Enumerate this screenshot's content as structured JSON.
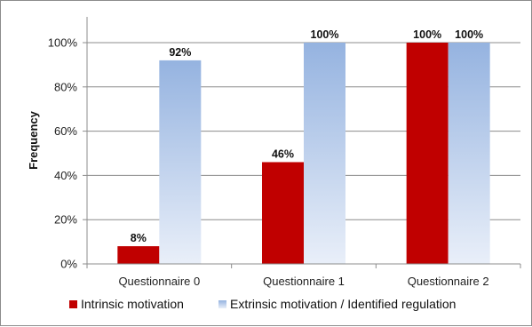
{
  "chart_data": {
    "type": "bar",
    "categories": [
      "Questionnaire 0",
      "Questionnaire 1",
      "Questionnaire 2"
    ],
    "series": [
      {
        "name": "Intrinsic motivation",
        "values": [
          8,
          46,
          100
        ],
        "labels": [
          "8%",
          "46%",
          "100%"
        ],
        "color": "#c00000"
      },
      {
        "name": "Extrinsic motivation / Identified regulation",
        "values": [
          92,
          100,
          100
        ],
        "labels": [
          "92%",
          "100%",
          "100%"
        ],
        "color": "#95b3e0",
        "color_light": "#e9eff9"
      }
    ],
    "ylabel": "Frequency",
    "xlabel": "",
    "title": "",
    "ylim": [
      0,
      100
    ],
    "yticks": [
      0,
      20,
      40,
      60,
      80,
      100
    ],
    "ytick_labels": [
      "0%",
      "20%",
      "40%",
      "60%",
      "80%",
      "100%"
    ],
    "grid": true,
    "legend_position": "bottom"
  }
}
